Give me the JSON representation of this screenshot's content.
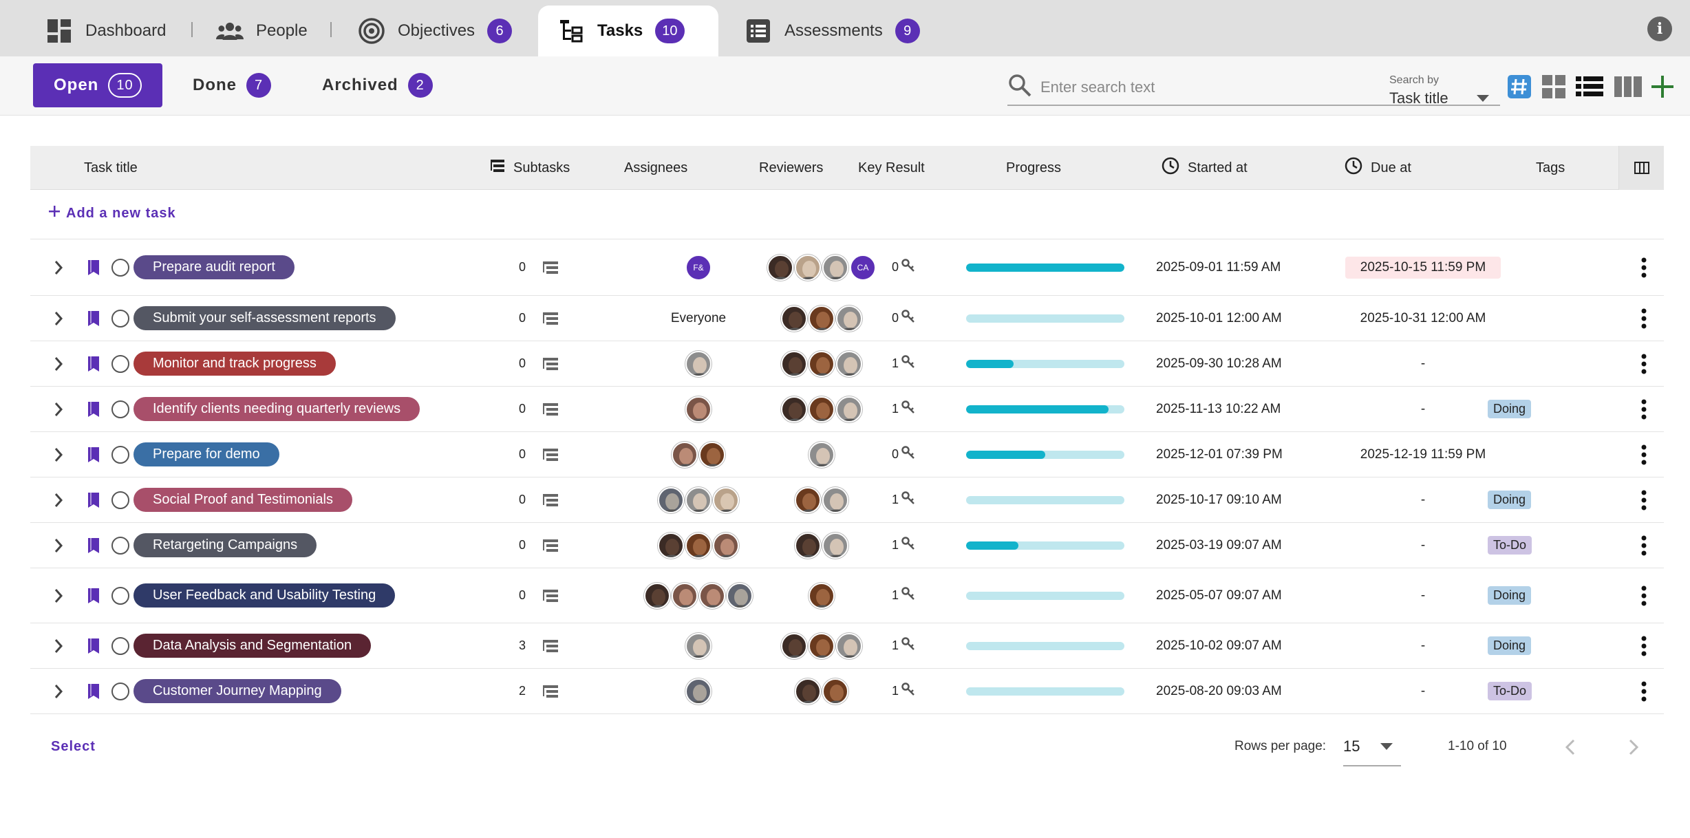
{
  "top_tabs": [
    {
      "label": "Dashboard",
      "icon": "dashboard-icon"
    },
    {
      "label": "People",
      "icon": "people-icon"
    },
    {
      "label": "Objectives",
      "icon": "target-icon",
      "count": "6"
    },
    {
      "label": "Tasks",
      "icon": "tasks-tree-icon",
      "count": "10",
      "active": true
    },
    {
      "label": "Assessments",
      "icon": "list-icon",
      "count": "9"
    }
  ],
  "status_tabs": [
    {
      "label": "Open",
      "count": "10",
      "active": true
    },
    {
      "label": "Done",
      "count": "7"
    },
    {
      "label": "Archived",
      "count": "2"
    }
  ],
  "search": {
    "placeholder": "Enter search text",
    "by_label": "Search by",
    "by_value": "Task title"
  },
  "view_icons": [
    "hash-view-icon",
    "grid-view-icon",
    "list-view-icon",
    "column-view-icon",
    "add-icon"
  ],
  "colors": {
    "accent": "#5b2fb5",
    "progress": "#12b3cb",
    "progress_track": "#bfe7ee",
    "add": "#2e7d32"
  },
  "table": {
    "headers": {
      "task_title": "Task title",
      "subtasks": "Subtasks",
      "assignees": "Assignees",
      "reviewers": "Reviewers",
      "key_result": "Key Result",
      "progress": "Progress",
      "started_at": "Started at",
      "due_at": "Due at",
      "tags": "Tags"
    },
    "add_task": "Add a new task",
    "rows": [
      {
        "title": "Prepare audit report",
        "color": "#5a4a8a",
        "subtasks": "0",
        "assignees": [
          "F&"
        ],
        "reviewers": [
          "p1",
          "p2",
          "p3",
          "CA"
        ],
        "kr": "0",
        "progress": 1.0,
        "started": "2025-09-01 11:59 AM",
        "due": "2025-10-15 11:59 PM",
        "overdue": true,
        "tag": ""
      },
      {
        "title": "Submit your self-assessment reports",
        "color": "#545763",
        "subtasks": "0",
        "assignees_text": "Everyone",
        "reviewers": [
          "p1",
          "p4",
          "p3"
        ],
        "kr": "0",
        "progress": 0.0,
        "started": "2025-10-01 12:00 AM",
        "due": "2025-10-31 12:00 AM",
        "tag": ""
      },
      {
        "title": "Monitor and track progress",
        "color": "#a83a3a",
        "subtasks": "0",
        "assignees": [
          "p3"
        ],
        "reviewers": [
          "p1",
          "p4",
          "p3"
        ],
        "kr": "1",
        "progress": 0.3,
        "started": "2025-09-30 10:28 AM",
        "due": "-",
        "tag": ""
      },
      {
        "title": "Identify clients needing quarterly reviews",
        "color": "#a84f6a",
        "subtasks": "0",
        "assignees": [
          "p5"
        ],
        "reviewers": [
          "p1",
          "p4",
          "p3"
        ],
        "kr": "1",
        "progress": 0.9,
        "started": "2025-11-13 10:22 AM",
        "due": "-",
        "tag": "Doing",
        "tag_color": "#b3d1e8"
      },
      {
        "title": "Prepare for demo",
        "color": "#3a6fa5",
        "subtasks": "0",
        "assignees": [
          "p5",
          "p4"
        ],
        "reviewers": [
          "p3"
        ],
        "kr": "0",
        "progress": 0.5,
        "started": "2025-12-01 07:39 PM",
        "due": "2025-12-19 11:59 PM",
        "tag": ""
      },
      {
        "title": "Social Proof and Testimonials",
        "color": "#a84f6a",
        "subtasks": "0",
        "assignees": [
          "p6",
          "p3",
          "p2"
        ],
        "reviewers": [
          "p4",
          "p3"
        ],
        "kr": "1",
        "progress": 0.0,
        "started": "2025-10-17 09:10 AM",
        "due": "-",
        "tag": "Doing",
        "tag_color": "#b3d1e8"
      },
      {
        "title": "Retargeting Campaigns",
        "color": "#545763",
        "subtasks": "0",
        "assignees": [
          "p1",
          "p4",
          "p5"
        ],
        "reviewers": [
          "p1",
          "p3"
        ],
        "kr": "1",
        "progress": 0.33,
        "started": "2025-03-19 09:07 AM",
        "due": "-",
        "tag": "To-Do",
        "tag_color": "#cdc3e3"
      },
      {
        "title": "User Feedback and Usability Testing",
        "color": "#2f3a68",
        "subtasks": "0",
        "assignees": [
          "p1",
          "p5",
          "p5",
          "p6"
        ],
        "reviewers": [
          "p4"
        ],
        "kr": "1",
        "progress": 0.0,
        "started": "2025-05-07 09:07 AM",
        "due": "-",
        "tag": "Doing",
        "tag_color": "#b3d1e8"
      },
      {
        "title": "Data Analysis and Segmentation",
        "color": "#5a2432",
        "subtasks": "3",
        "assignees": [
          "p3"
        ],
        "reviewers": [
          "p1",
          "p4",
          "p3"
        ],
        "kr": "1",
        "progress": 0.0,
        "started": "2025-10-02 09:07 AM",
        "due": "-",
        "tag": "Doing",
        "tag_color": "#b3d1e8"
      },
      {
        "title": "Customer Journey Mapping",
        "color": "#5a4a8a",
        "subtasks": "2",
        "assignees": [
          "p6"
        ],
        "reviewers": [
          "p1",
          "p4"
        ],
        "kr": "1",
        "progress": 0.0,
        "started": "2025-08-20 09:03 AM",
        "due": "-",
        "tag": "To-Do",
        "tag_color": "#cdc3e3"
      }
    ]
  },
  "footer": {
    "select": "Select",
    "rows_per_page_label": "Rows per page:",
    "rows_per_page": "15",
    "range": "1-10 of 10"
  }
}
